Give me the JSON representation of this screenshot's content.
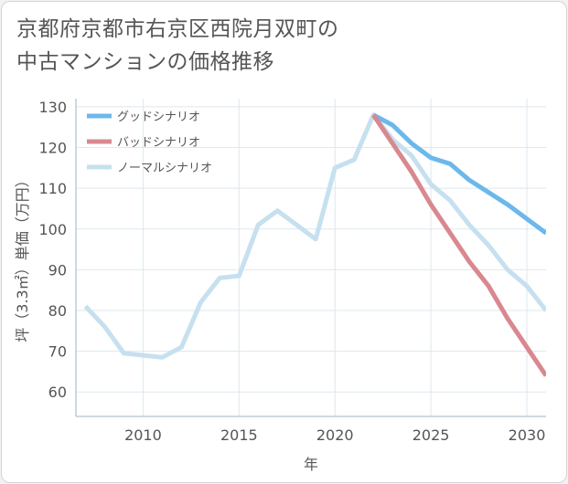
{
  "chart_data": {
    "type": "line",
    "title": "京都府京都市右京区西院月双町の中古マンションの価格推移",
    "title_lines": [
      "京都府京都市右京区西院月双町の",
      "中古マンションの価格推移"
    ],
    "xlabel": "年",
    "ylabel": "坪（3.3㎡）単価（万円）",
    "xlim": [
      2006.5,
      2031
    ],
    "ylim": [
      54,
      132
    ],
    "xticks": [
      2010,
      2015,
      2020,
      2025,
      2030
    ],
    "yticks": [
      60,
      70,
      80,
      90,
      100,
      110,
      120,
      130
    ],
    "grid": true,
    "legend_position": "top-left",
    "series": [
      {
        "name": "グッドシナリオ",
        "color": "#6cb8eb",
        "x": [
          2022,
          2023,
          2024,
          2025,
          2026,
          2027,
          2028,
          2029,
          2030,
          2031
        ],
        "values": [
          128,
          125.5,
          121,
          117.5,
          116,
          112,
          109,
          106,
          102.5,
          99
        ]
      },
      {
        "name": "バッドシナリオ",
        "color": "#d98890",
        "x": [
          2022,
          2023,
          2024,
          2025,
          2026,
          2027,
          2028,
          2029,
          2030,
          2031
        ],
        "values": [
          128,
          121,
          114,
          106,
          99,
          92,
          86,
          78,
          71,
          64
        ]
      },
      {
        "name": "ノーマルシナリオ",
        "color": "#c6e0ef",
        "x": [
          2007,
          2008,
          2009,
          2010,
          2011,
          2012,
          2013,
          2014,
          2015,
          2016,
          2017,
          2018,
          2019,
          2020,
          2021,
          2022,
          2023,
          2024,
          2025,
          2026,
          2027,
          2028,
          2029,
          2030,
          2031
        ],
        "values": [
          81,
          76,
          69.5,
          69,
          68.5,
          71,
          82,
          88,
          88.5,
          101,
          104.5,
          101,
          97.5,
          115,
          117,
          128,
          122,
          118,
          111,
          107,
          101,
          96,
          90,
          86,
          80
        ]
      }
    ]
  }
}
